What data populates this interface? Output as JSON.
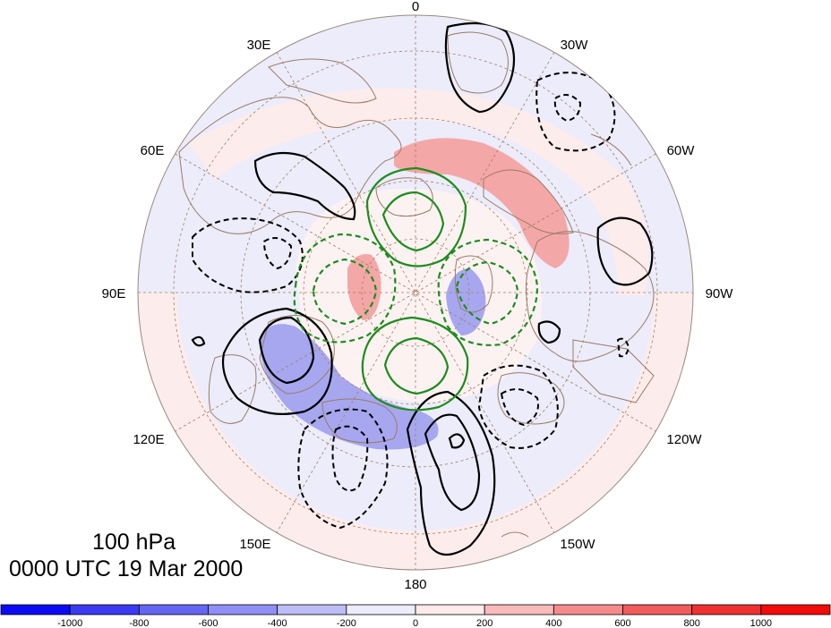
{
  "map": {
    "projection": "north polar stereographic",
    "longitude_labels": {
      "top": "0",
      "upper_left_1": "30E",
      "upper_right_1": "30W",
      "upper_left_2": "60E",
      "upper_right_2": "60W",
      "left": "90E",
      "right": "90W",
      "lower_left_2": "120E",
      "lower_right_2": "120W",
      "lower_left_1": "150E",
      "lower_right_1": "150W",
      "bottom": "180"
    },
    "colors": {
      "positive_shading": "#f4a7a7",
      "negative_shading": "#a7a7f0",
      "weak_positive": "#fdecec",
      "weak_negative": "#ececfb",
      "contour_black": "#000000",
      "contour_green": "#1e8c1e",
      "coastline": "#9b7b63",
      "graticule": "#a08060"
    }
  },
  "caption": {
    "level": "100 hPa",
    "time": "0000 UTC 19 Mar 2000"
  },
  "colorbar": {
    "ticks": [
      "-1000",
      "-800",
      "-600",
      "-400",
      "-200",
      "0",
      "200",
      "400",
      "600",
      "800",
      "1000"
    ],
    "colors": [
      "#0b0bf5",
      "#3a3af3",
      "#6565f3",
      "#8f8ff5",
      "#bcbcf8",
      "#ececfc",
      "#fdeaea",
      "#f9baba",
      "#f58a8a",
      "#f25b5b",
      "#ef3030",
      "#f20b0b"
    ]
  }
}
